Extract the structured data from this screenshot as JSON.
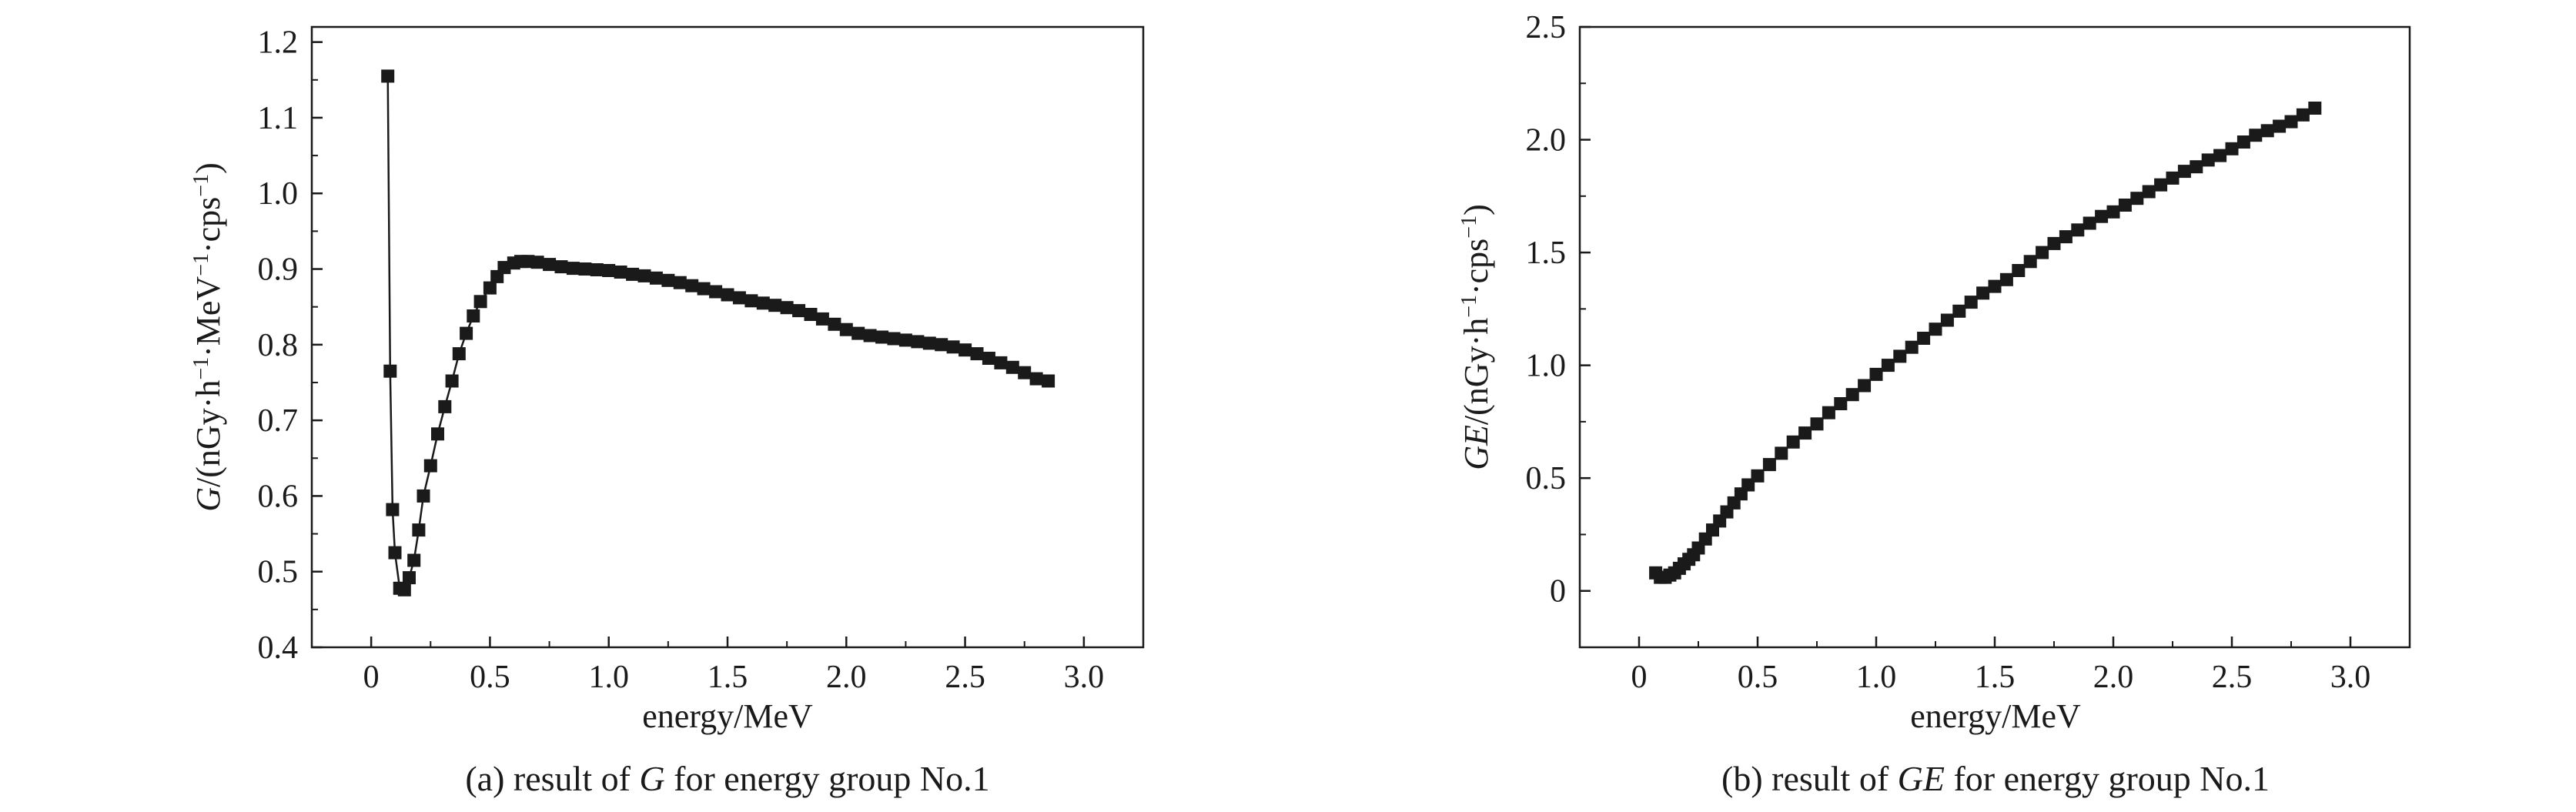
{
  "charts": [
    {
      "caption": {
        "prefix": "(a) result of ",
        "symbol": "G",
        "suffix": " for energy group No.1"
      },
      "xlabel": "energy/MeV",
      "ylabel": {
        "symbol": "G",
        "rest": "/(nGy·h",
        "sup1": "−1",
        "mid1": "·MeV",
        "sup2": "−1",
        "mid2": "·cps",
        "sup3": "−1",
        "tail": ")"
      },
      "x_ticks": [
        "0",
        "0.5",
        "1.0",
        "1.5",
        "2.0",
        "2.5",
        "3.0"
      ],
      "y_ticks": [
        "0.4",
        "0.5",
        "0.6",
        "0.7",
        "0.8",
        "0.9",
        "1.0",
        "1.1",
        "1.2"
      ]
    },
    {
      "caption": {
        "prefix": "(b) result of ",
        "symbol": "GE",
        "suffix": " for energy group No.1"
      },
      "xlabel": "energy/MeV",
      "ylabel": {
        "symbol": "GE",
        "rest": "/(nGy·h",
        "sup1": "−1",
        "mid1": "·cps",
        "sup2": "−1",
        "tail": ")"
      },
      "x_ticks": [
        "0",
        "0.5",
        "1.0",
        "1.5",
        "2.0",
        "2.5",
        "3.0"
      ],
      "y_ticks": [
        "0",
        "0.5",
        "1.0",
        "1.5",
        "2.0",
        "2.5"
      ]
    }
  ],
  "chart_data": [
    {
      "type": "line",
      "title": "(a) result of G for energy group No.1",
      "xlabel": "energy/MeV",
      "ylabel": "G/(nGy·h⁻¹·MeV⁻¹·cps⁻¹)",
      "xlim": [
        -0.25,
        3.25
      ],
      "ylim": [
        0.4,
        1.22
      ],
      "marker": "square",
      "grid": false,
      "color": "#1a1a1a",
      "series": [
        {
          "x": [
            0.07,
            0.08,
            0.09,
            0.1,
            0.12,
            0.14,
            0.16,
            0.18,
            0.2,
            0.22,
            0.25,
            0.28,
            0.31,
            0.34,
            0.37,
            0.4,
            0.43,
            0.46,
            0.5,
            0.53,
            0.56,
            0.6,
            0.63,
            0.66,
            0.7,
            0.75,
            0.8,
            0.85,
            0.9,
            0.95,
            1.0,
            1.05,
            1.1,
            1.15,
            1.2,
            1.25,
            1.3,
            1.35,
            1.4,
            1.45,
            1.5,
            1.55,
            1.6,
            1.65,
            1.7,
            1.75,
            1.8,
            1.85,
            1.9,
            1.95,
            2.0,
            2.05,
            2.1,
            2.15,
            2.2,
            2.25,
            2.3,
            2.35,
            2.4,
            2.45,
            2.5,
            2.55,
            2.6,
            2.65,
            2.7,
            2.75,
            2.8,
            2.85
          ],
          "y": [
            1.155,
            0.765,
            0.582,
            0.525,
            0.478,
            0.476,
            0.492,
            0.515,
            0.555,
            0.6,
            0.64,
            0.682,
            0.718,
            0.752,
            0.788,
            0.815,
            0.838,
            0.857,
            0.875,
            0.89,
            0.902,
            0.908,
            0.91,
            0.91,
            0.909,
            0.906,
            0.903,
            0.901,
            0.9,
            0.899,
            0.898,
            0.896,
            0.893,
            0.891,
            0.888,
            0.885,
            0.882,
            0.878,
            0.874,
            0.87,
            0.866,
            0.862,
            0.858,
            0.855,
            0.852,
            0.849,
            0.845,
            0.84,
            0.834,
            0.827,
            0.82,
            0.815,
            0.812,
            0.81,
            0.808,
            0.806,
            0.804,
            0.802,
            0.8,
            0.797,
            0.793,
            0.788,
            0.782,
            0.776,
            0.77,
            0.763,
            0.755,
            0.752
          ]
        }
      ]
    },
    {
      "type": "line",
      "title": "(b) result of GE for energy group No.1",
      "xlabel": "energy/MeV",
      "ylabel": "GE/(nGy·h⁻¹·cps⁻¹)",
      "xlim": [
        -0.25,
        3.25
      ],
      "ylim": [
        -0.25,
        2.5
      ],
      "marker": "square",
      "grid": false,
      "color": "#1a1a1a",
      "series": [
        {
          "x": [
            0.07,
            0.09,
            0.11,
            0.13,
            0.15,
            0.17,
            0.19,
            0.21,
            0.23,
            0.25,
            0.28,
            0.31,
            0.34,
            0.37,
            0.4,
            0.43,
            0.46,
            0.5,
            0.55,
            0.6,
            0.65,
            0.7,
            0.75,
            0.8,
            0.85,
            0.9,
            0.95,
            1.0,
            1.05,
            1.1,
            1.15,
            1.2,
            1.25,
            1.3,
            1.35,
            1.4,
            1.45,
            1.5,
            1.55,
            1.6,
            1.65,
            1.7,
            1.75,
            1.8,
            1.85,
            1.9,
            1.95,
            2.0,
            2.05,
            2.1,
            2.15,
            2.2,
            2.25,
            2.3,
            2.35,
            2.4,
            2.45,
            2.5,
            2.55,
            2.6,
            2.65,
            2.7,
            2.75,
            2.8,
            2.85
          ],
          "y": [
            0.08,
            0.06,
            0.06,
            0.07,
            0.08,
            0.1,
            0.12,
            0.14,
            0.16,
            0.19,
            0.23,
            0.27,
            0.31,
            0.35,
            0.39,
            0.43,
            0.47,
            0.51,
            0.56,
            0.61,
            0.66,
            0.7,
            0.74,
            0.79,
            0.83,
            0.87,
            0.91,
            0.96,
            1.0,
            1.04,
            1.08,
            1.12,
            1.16,
            1.2,
            1.24,
            1.28,
            1.32,
            1.35,
            1.38,
            1.42,
            1.46,
            1.5,
            1.54,
            1.57,
            1.6,
            1.63,
            1.66,
            1.68,
            1.71,
            1.74,
            1.77,
            1.8,
            1.83,
            1.86,
            1.88,
            1.91,
            1.93,
            1.96,
            1.99,
            2.02,
            2.04,
            2.06,
            2.08,
            2.11,
            2.14
          ]
        }
      ]
    }
  ]
}
